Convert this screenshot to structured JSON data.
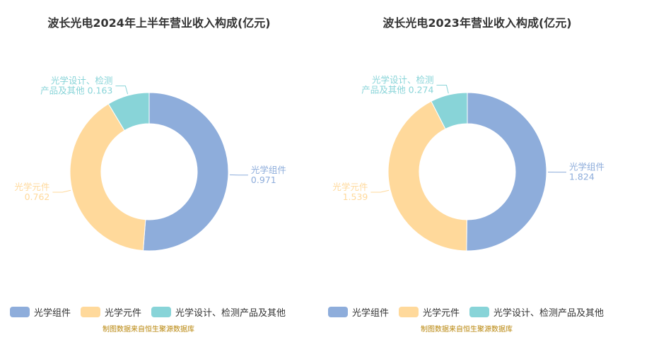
{
  "colors": {
    "光学组件": "#8eaddb",
    "光学元件": "#ffd99b",
    "光学设计、检测产品及其他": "#88d4d8",
    "source": "#b8860b"
  },
  "chart_data": [
    {
      "type": "pie",
      "title": "波长光电2024年上半年营业收入构成(亿元)",
      "slices": [
        {
          "name": "光学组件",
          "value": 0.971
        },
        {
          "name": "光学元件",
          "value": 0.762
        },
        {
          "name": "光学设计、检测产品及其他",
          "value": 0.163
        }
      ],
      "labels": [
        {
          "text": [
            "光学组件",
            "0.971"
          ]
        },
        {
          "text": [
            "光学元件",
            "0.762"
          ]
        },
        {
          "text": [
            "光学设计、检测",
            "产品及其他 0.163"
          ]
        }
      ],
      "legend": [
        "光学组件",
        "光学元件",
        "光学设计、检测产品及其他"
      ],
      "legend_position": "bottom",
      "source": "制图数据来自恒生聚源数据库"
    },
    {
      "type": "pie",
      "title": "波长光电2023年营业收入构成(亿元)",
      "slices": [
        {
          "name": "光学组件",
          "value": 1.824
        },
        {
          "name": "光学元件",
          "value": 1.539
        },
        {
          "name": "光学设计、检测产品及其他",
          "value": 0.274
        }
      ],
      "labels": [
        {
          "text": [
            "光学组件",
            "1.824"
          ]
        },
        {
          "text": [
            "光学元件",
            "1.539"
          ]
        },
        {
          "text": [
            "光学设计、检测",
            "产品及其他 0.274"
          ]
        }
      ],
      "legend": [
        "光学组件",
        "光学元件",
        "光学设计、检测产品及其他"
      ],
      "legend_position": "bottom",
      "source": "制图数据来自恒生聚源数据库"
    }
  ]
}
